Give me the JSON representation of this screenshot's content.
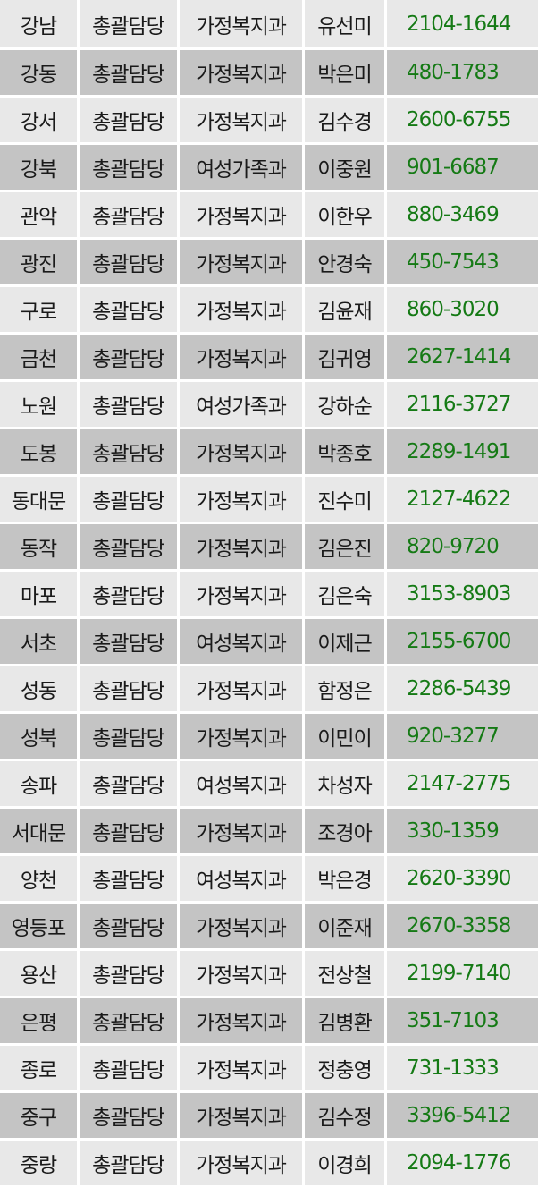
{
  "rows": [
    {
      "district": "강남",
      "role": "총괄담당",
      "department": "가정복지과",
      "name": "유선미",
      "phone": "2104-1644"
    },
    {
      "district": "강동",
      "role": "총괄담당",
      "department": "가정복지과",
      "name": "박은미",
      "phone": "480-1783"
    },
    {
      "district": "강서",
      "role": "총괄담당",
      "department": "가정복지과",
      "name": "김수경",
      "phone": "2600-6755"
    },
    {
      "district": "강북",
      "role": "총괄담당",
      "department": "여성가족과",
      "name": "이중원",
      "phone": "901-6687"
    },
    {
      "district": "관악",
      "role": "총괄담당",
      "department": "가정복지과",
      "name": "이한우",
      "phone": "880-3469"
    },
    {
      "district": "광진",
      "role": "총괄담당",
      "department": "가정복지과",
      "name": "안경숙",
      "phone": "450-7543"
    },
    {
      "district": "구로",
      "role": "총괄담당",
      "department": "가정복지과",
      "name": "김윤재",
      "phone": "860-3020"
    },
    {
      "district": "금천",
      "role": "총괄담당",
      "department": "가정복지과",
      "name": "김귀영",
      "phone": "2627-1414"
    },
    {
      "district": "노원",
      "role": "총괄담당",
      "department": "여성가족과",
      "name": "강하순",
      "phone": "2116-3727"
    },
    {
      "district": "도봉",
      "role": "총괄담당",
      "department": "가정복지과",
      "name": "박종호",
      "phone": "2289-1491"
    },
    {
      "district": "동대문",
      "role": "총괄담당",
      "department": "가정복지과",
      "name": "진수미",
      "phone": "2127-4622"
    },
    {
      "district": "동작",
      "role": "총괄담당",
      "department": "가정복지과",
      "name": "김은진",
      "phone": "820-9720"
    },
    {
      "district": "마포",
      "role": "총괄담당",
      "department": "가정복지과",
      "name": "김은숙",
      "phone": "3153-8903"
    },
    {
      "district": "서초",
      "role": "총괄담당",
      "department": "여성복지과",
      "name": "이제근",
      "phone": "2155-6700"
    },
    {
      "district": "성동",
      "role": "총괄담당",
      "department": "가정복지과",
      "name": "함정은",
      "phone": "2286-5439"
    },
    {
      "district": "성북",
      "role": "총괄담당",
      "department": "가정복지과",
      "name": "이민이",
      "phone": "920-3277"
    },
    {
      "district": "송파",
      "role": "총괄담당",
      "department": "여성복지과",
      "name": "차성자",
      "phone": "2147-2775"
    },
    {
      "district": "서대문",
      "role": "총괄담당",
      "department": "가정복지과",
      "name": "조경아",
      "phone": "330-1359"
    },
    {
      "district": "양천",
      "role": "총괄담당",
      "department": "여성복지과",
      "name": "박은경",
      "phone": "2620-3390"
    },
    {
      "district": "영등포",
      "role": "총괄담당",
      "department": "가정복지과",
      "name": "이준재",
      "phone": "2670-3358"
    },
    {
      "district": "용산",
      "role": "총괄담당",
      "department": "가정복지과",
      "name": "전상철",
      "phone": "2199-7140"
    },
    {
      "district": "은평",
      "role": "총괄담당",
      "department": "가정복지과",
      "name": "김병환",
      "phone": "351-7103"
    },
    {
      "district": "종로",
      "role": "총괄담당",
      "department": "가정복지과",
      "name": "정충영",
      "phone": "731-1333"
    },
    {
      "district": "중구",
      "role": "총괄담당",
      "department": "가정복지과",
      "name": "김수정",
      "phone": "3396-5412"
    },
    {
      "district": "중랑",
      "role": "총괄담당",
      "department": "가정복지과",
      "name": "이경희",
      "phone": "2094-1776"
    }
  ]
}
